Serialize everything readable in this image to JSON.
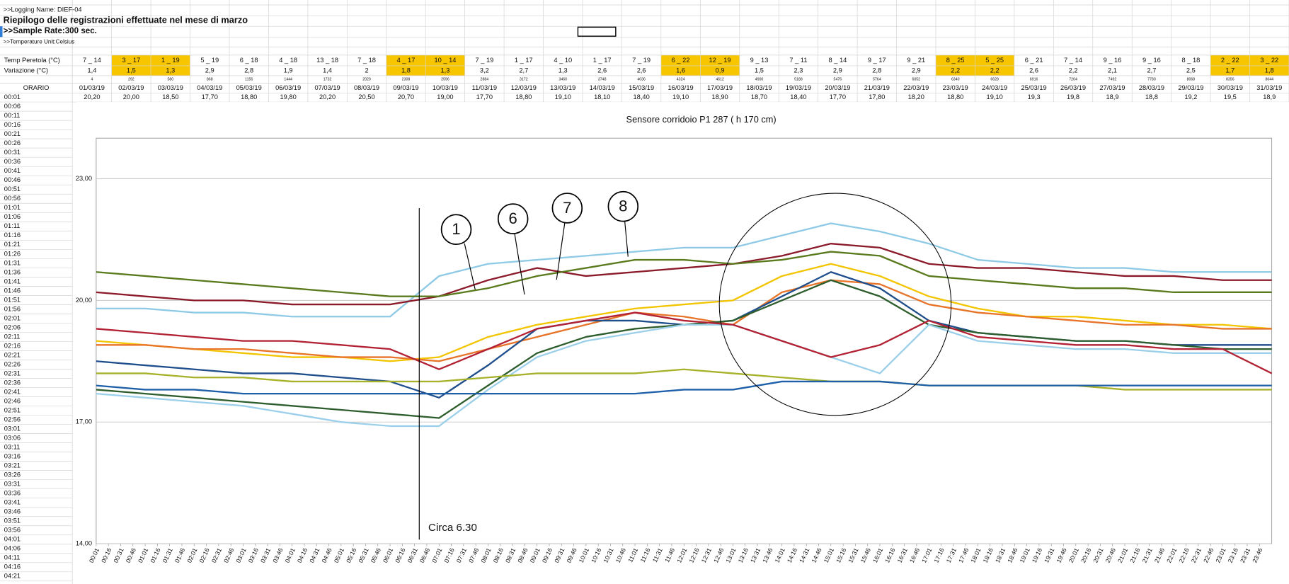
{
  "sheet": {
    "logging_name": ">>Logging Name: DIEF-04",
    "title": "Riepilogo delle registrazioni effettuate nel mese di marzo",
    "sample_rate": ">>Sample Rate:300 sec.",
    "temp_unit": ">>Temperature Unit:Celsius",
    "row_labels": [
      "Temp Peretola (°C)",
      "Variazione (°C)",
      "ORARIO",
      "00:01"
    ],
    "highlight_color": "#f7c600",
    "highlighted": [
      1,
      2,
      8,
      9,
      15,
      16,
      22,
      23,
      29,
      30
    ],
    "temp_ranges": [
      "7 _ 14",
      "3 _ 17",
      "1 _ 19",
      "5 _ 19",
      "6 _ 18",
      "4 _ 18",
      "13 _ 18",
      "7 _ 18",
      "4 _ 17",
      "10 _ 14",
      "7 _ 19",
      "1 _ 17",
      "4 _ 10",
      "1 _ 17",
      "7 _ 19",
      "6 _ 22",
      "12 _ 19",
      "9 _ 13",
      "7 _ 11",
      "8 _ 14",
      "9 _ 17",
      "9 _ 21",
      "8 _ 25",
      "5 _ 25",
      "6 _ 21",
      "7 _ 14",
      "9 _ 16",
      "9 _ 16",
      "8 _ 18",
      "2 _ 22",
      "3 _ 22"
    ],
    "variazione": [
      "1,4",
      "1,5",
      "1,3",
      "2,9",
      "2,8",
      "1,9",
      "1,4",
      "2",
      "1,8",
      "1,3",
      "3,2",
      "2,7",
      "1,3",
      "2,6",
      "2,6",
      "1,6",
      "0,9",
      "1,5",
      "2,3",
      "2,9",
      "2,8",
      "2,9",
      "2,2",
      "2,2",
      "2,6",
      "2,2",
      "2,1",
      "2,7",
      "2,5",
      "1,7",
      "1,8"
    ],
    "index": [
      4,
      292,
      580,
      868,
      1156,
      1444,
      1732,
      2020,
      2308,
      2596,
      2884,
      3172,
      3460,
      3748,
      4036,
      4324,
      4612,
      4900,
      5188,
      5476,
      5764,
      6052,
      6340,
      6628,
      6916,
      7204,
      7492,
      7780,
      8068,
      8356,
      8644
    ],
    "dates": [
      "01/03/19",
      "02/03/19",
      "03/03/19",
      "04/03/19",
      "05/03/19",
      "06/03/19",
      "07/03/19",
      "08/03/19",
      "09/03/19",
      "10/03/19",
      "11/03/19",
      "12/03/19",
      "13/03/19",
      "14/03/19",
      "15/03/19",
      "16/03/19",
      "17/03/19",
      "18/03/19",
      "19/03/19",
      "20/03/19",
      "21/03/19",
      "22/03/19",
      "23/03/19",
      "24/03/19",
      "25/03/19",
      "26/03/19",
      "27/03/19",
      "28/03/19",
      "29/03/19",
      "30/03/19",
      "31/03/19"
    ],
    "first_values": [
      "20,20",
      "20,00",
      "18,50",
      "17,70",
      "18,80",
      "19,80",
      "20,20",
      "20,50",
      "20,70",
      "19,00",
      "17,70",
      "18,80",
      "19,10",
      "18,10",
      "18,40",
      "19,10",
      "18,90",
      "18,70",
      "18,40",
      "17,70",
      "17,80",
      "18,20",
      "18,80",
      "19,10",
      "19,3",
      "19,8",
      "18,9",
      "18,8",
      "19,2",
      "19,5",
      "18,9"
    ],
    "times": [
      "00:06",
      "00:11",
      "00:16",
      "00:21",
      "00:26",
      "00:31",
      "00:36",
      "00:41",
      "00:46",
      "00:51",
      "00:56",
      "01:01",
      "01:06",
      "01:11",
      "01:16",
      "01:21",
      "01:26",
      "01:31",
      "01:36",
      "01:41",
      "01:46",
      "01:51",
      "01:56",
      "02:01",
      "02:06",
      "02:11",
      "02:16",
      "02:21",
      "02:26",
      "02:31",
      "02:36",
      "02:41",
      "02:46",
      "02:51",
      "02:56",
      "03:01",
      "03:06",
      "03:11",
      "03:16",
      "03:21",
      "03:26",
      "03:31",
      "03:36",
      "03:41",
      "03:46",
      "03:51",
      "03:56",
      "04:01",
      "04:06",
      "04:11",
      "04:16",
      "04:21"
    ]
  },
  "chart_data": {
    "type": "line",
    "title": "Sensore corridoio P1 287  ( h 170 cm)",
    "annotations": [
      "Circa 6.30",
      "1",
      "6",
      "7",
      "8"
    ],
    "grid": true,
    "xlim": [
      1,
      1441
    ],
    "ylim": [
      14,
      24
    ],
    "yticks": [
      {
        "value": 14,
        "label": "14,00"
      },
      {
        "value": 17,
        "label": "17,00"
      },
      {
        "value": 20,
        "label": "20,00"
      },
      {
        "value": 23,
        "label": "23,00"
      }
    ],
    "xticks": [
      {
        "value": 1,
        "label": "00:01"
      },
      {
        "value": 16,
        "label": "00:16"
      },
      {
        "value": 31,
        "label": "00:31"
      },
      {
        "value": 46,
        "label": "00:46"
      },
      {
        "value": 61,
        "label": "01:01"
      },
      {
        "value": 76,
        "label": "01:16"
      },
      {
        "value": 91,
        "label": "01:31"
      },
      {
        "value": 106,
        "label": "01:46"
      },
      {
        "value": 121,
        "label": "02:01"
      },
      {
        "value": 136,
        "label": "02:16"
      },
      {
        "value": 151,
        "label": "02:31"
      },
      {
        "value": 166,
        "label": "02:46"
      },
      {
        "value": 181,
        "label": "03:01"
      },
      {
        "value": 196,
        "label": "03:16"
      },
      {
        "value": 211,
        "label": "03:31"
      },
      {
        "value": 226,
        "label": "03:46"
      },
      {
        "value": 241,
        "label": "04:01"
      },
      {
        "value": 256,
        "label": "04:16"
      },
      {
        "value": 271,
        "label": "04:31"
      },
      {
        "value": 286,
        "label": "04:46"
      },
      {
        "value": 301,
        "label": "05:01"
      },
      {
        "value": 316,
        "label": "05:16"
      },
      {
        "value": 331,
        "label": "05:31"
      },
      {
        "value": 346,
        "label": "05:46"
      },
      {
        "value": 361,
        "label": "06:01"
      },
      {
        "value": 376,
        "label": "06:16"
      },
      {
        "value": 391,
        "label": "06:31"
      },
      {
        "value": 406,
        "label": "06:46"
      },
      {
        "value": 421,
        "label": "07:01"
      },
      {
        "value": 436,
        "label": "07:16"
      },
      {
        "value": 451,
        "label": "07:31"
      },
      {
        "value": 466,
        "label": "07:46"
      },
      {
        "value": 481,
        "label": "08:01"
      },
      {
        "value": 496,
        "label": "08:16"
      },
      {
        "value": 511,
        "label": "08:31"
      },
      {
        "value": 526,
        "label": "08:46"
      },
      {
        "value": 541,
        "label": "09:01"
      },
      {
        "value": 556,
        "label": "09:16"
      },
      {
        "value": 571,
        "label": "09:31"
      },
      {
        "value": 586,
        "label": "09:46"
      },
      {
        "value": 601,
        "label": "10:01"
      },
      {
        "value": 616,
        "label": "10:16"
      },
      {
        "value": 631,
        "label": "10:31"
      },
      {
        "value": 646,
        "label": "10:46"
      },
      {
        "value": 661,
        "label": "11:01"
      },
      {
        "value": 676,
        "label": "11:16"
      },
      {
        "value": 691,
        "label": "11:31"
      },
      {
        "value": 706,
        "label": "11:46"
      },
      {
        "value": 721,
        "label": "12:01"
      },
      {
        "value": 736,
        "label": "12:16"
      },
      {
        "value": 751,
        "label": "12:31"
      },
      {
        "value": 766,
        "label": "12:46"
      },
      {
        "value": 781,
        "label": "13:01"
      },
      {
        "value": 796,
        "label": "13:16"
      },
      {
        "value": 811,
        "label": "13:31"
      },
      {
        "value": 826,
        "label": "13:46"
      },
      {
        "value": 841,
        "label": "14:01"
      },
      {
        "value": 856,
        "label": "14:16"
      },
      {
        "value": 871,
        "label": "14:31"
      },
      {
        "value": 886,
        "label": "14:46"
      },
      {
        "value": 901,
        "label": "15:01"
      },
      {
        "value": 916,
        "label": "15:16"
      },
      {
        "value": 931,
        "label": "15:31"
      },
      {
        "value": 946,
        "label": "15:46"
      },
      {
        "value": 961,
        "label": "16:01"
      },
      {
        "value": 976,
        "label": "16:16"
      },
      {
        "value": 991,
        "label": "16:31"
      },
      {
        "value": 1006,
        "label": "16:46"
      },
      {
        "value": 1021,
        "label": "17:01"
      },
      {
        "value": 1036,
        "label": "17:16"
      },
      {
        "value": 1051,
        "label": "17:31"
      },
      {
        "value": 1066,
        "label": "17:46"
      },
      {
        "value": 1081,
        "label": "18:01"
      },
      {
        "value": 1096,
        "label": "18:16"
      },
      {
        "value": 1111,
        "label": "18:31"
      },
      {
        "value": 1126,
        "label": "18:46"
      },
      {
        "value": 1141,
        "label": "19:01"
      },
      {
        "value": 1156,
        "label": "19:16"
      },
      {
        "value": 1171,
        "label": "19:31"
      },
      {
        "value": 1186,
        "label": "19:46"
      },
      {
        "value": 1201,
        "label": "20:01"
      },
      {
        "value": 1216,
        "label": "20:16"
      },
      {
        "value": 1231,
        "label": "20:31"
      },
      {
        "value": 1246,
        "label": "20:46"
      },
      {
        "value": 1261,
        "label": "21:01"
      },
      {
        "value": 1276,
        "label": "21:16"
      },
      {
        "value": 1291,
        "label": "21:31"
      },
      {
        "value": 1306,
        "label": "21:46"
      },
      {
        "value": 1321,
        "label": "22:01"
      },
      {
        "value": 1336,
        "label": "22:16"
      },
      {
        "value": 1351,
        "label": "22:31"
      },
      {
        "value": 1366,
        "label": "22:46"
      },
      {
        "value": 1381,
        "label": "23:01"
      },
      {
        "value": 1396,
        "label": "23:16"
      },
      {
        "value": 1411,
        "label": "23:31"
      },
      {
        "value": 1426,
        "label": "23:46"
      }
    ],
    "x": [
      1,
      61,
      121,
      181,
      241,
      301,
      361,
      421,
      481,
      541,
      601,
      661,
      721,
      781,
      841,
      901,
      961,
      1021,
      1081,
      1141,
      1201,
      1261,
      1321,
      1381,
      1441
    ],
    "series": [
      {
        "color": "#8ecae6",
        "values": [
          19.8,
          19.8,
          19.7,
          19.7,
          19.6,
          19.6,
          19.6,
          20.6,
          20.9,
          21.0,
          21.1,
          21.2,
          21.3,
          21.3,
          21.6,
          21.9,
          21.7,
          21.4,
          21.0,
          20.9,
          20.8,
          20.8,
          20.7,
          20.7,
          20.7
        ]
      },
      {
        "color": "#8b1a2b",
        "values": [
          20.2,
          20.1,
          20.0,
          20.0,
          19.9,
          19.9,
          19.9,
          20.1,
          20.5,
          20.8,
          20.6,
          20.7,
          20.8,
          20.9,
          21.1,
          21.4,
          21.3,
          20.9,
          20.8,
          20.8,
          20.7,
          20.6,
          20.6,
          20.5,
          20.5
        ]
      },
      {
        "color": "#5a7a1e",
        "values": [
          20.7,
          20.6,
          20.5,
          20.4,
          20.3,
          20.2,
          20.1,
          20.1,
          20.3,
          20.6,
          20.8,
          21.0,
          21.0,
          20.9,
          21.0,
          21.2,
          21.1,
          20.6,
          20.5,
          20.4,
          20.3,
          20.3,
          20.2,
          20.2,
          20.2
        ]
      },
      {
        "color": "#f2c500",
        "values": [
          19.0,
          18.9,
          18.8,
          18.7,
          18.6,
          18.6,
          18.5,
          18.6,
          19.1,
          19.4,
          19.6,
          19.8,
          19.9,
          20.0,
          20.6,
          20.9,
          20.6,
          20.1,
          19.8,
          19.6,
          19.6,
          19.5,
          19.4,
          19.4,
          19.3
        ]
      },
      {
        "color": "#e8742a",
        "values": [
          18.9,
          18.9,
          18.8,
          18.8,
          18.7,
          18.6,
          18.6,
          18.5,
          18.8,
          19.1,
          19.4,
          19.7,
          19.6,
          19.4,
          20.2,
          20.5,
          20.4,
          19.9,
          19.7,
          19.6,
          19.5,
          19.4,
          19.4,
          19.3,
          19.3
        ]
      },
      {
        "color": "#1f4e8c",
        "values": [
          18.5,
          18.4,
          18.3,
          18.2,
          18.2,
          18.1,
          18.0,
          17.6,
          18.4,
          19.3,
          19.5,
          19.5,
          19.4,
          19.5,
          20.1,
          20.7,
          20.3,
          19.5,
          19.2,
          19.1,
          19.0,
          19.0,
          18.9,
          18.9,
          18.9
        ]
      },
      {
        "color": "#2e5e2e",
        "values": [
          17.8,
          17.7,
          17.6,
          17.5,
          17.4,
          17.3,
          17.2,
          17.1,
          17.9,
          18.7,
          19.1,
          19.3,
          19.4,
          19.5,
          20.0,
          20.5,
          20.1,
          19.4,
          19.2,
          19.1,
          19.0,
          19.0,
          18.9,
          18.8,
          18.8
        ]
      },
      {
        "color": "#9cd0ea",
        "values": [
          17.7,
          17.6,
          17.5,
          17.4,
          17.2,
          17.0,
          16.9,
          16.9,
          17.8,
          18.6,
          19.0,
          19.2,
          19.4,
          19.4,
          19.0,
          18.6,
          18.2,
          19.4,
          19.0,
          18.9,
          18.8,
          18.8,
          18.7,
          18.7,
          18.7
        ]
      },
      {
        "color": "#a6b22a",
        "values": [
          18.2,
          18.2,
          18.1,
          18.1,
          18.0,
          18.0,
          18.0,
          18.0,
          18.1,
          18.2,
          18.2,
          18.2,
          18.3,
          18.2,
          18.1,
          18.0,
          18.0,
          17.9,
          17.9,
          17.9,
          17.9,
          17.8,
          17.8,
          17.8,
          17.8
        ]
      },
      {
        "color": "#1d5fa8",
        "values": [
          17.9,
          17.8,
          17.8,
          17.7,
          17.7,
          17.7,
          17.7,
          17.7,
          17.7,
          17.7,
          17.7,
          17.7,
          17.8,
          17.8,
          18.0,
          18.0,
          18.0,
          17.9,
          17.9,
          17.9,
          17.9,
          17.9,
          17.9,
          17.9,
          17.9
        ]
      },
      {
        "color": "#b22234",
        "values": [
          19.3,
          19.2,
          19.1,
          19.0,
          19.0,
          18.9,
          18.8,
          18.3,
          18.8,
          19.3,
          19.5,
          19.7,
          19.5,
          19.4,
          19.0,
          18.6,
          18.9,
          19.5,
          19.1,
          19.0,
          18.9,
          18.9,
          18.8,
          18.8,
          18.2
        ]
      }
    ]
  }
}
